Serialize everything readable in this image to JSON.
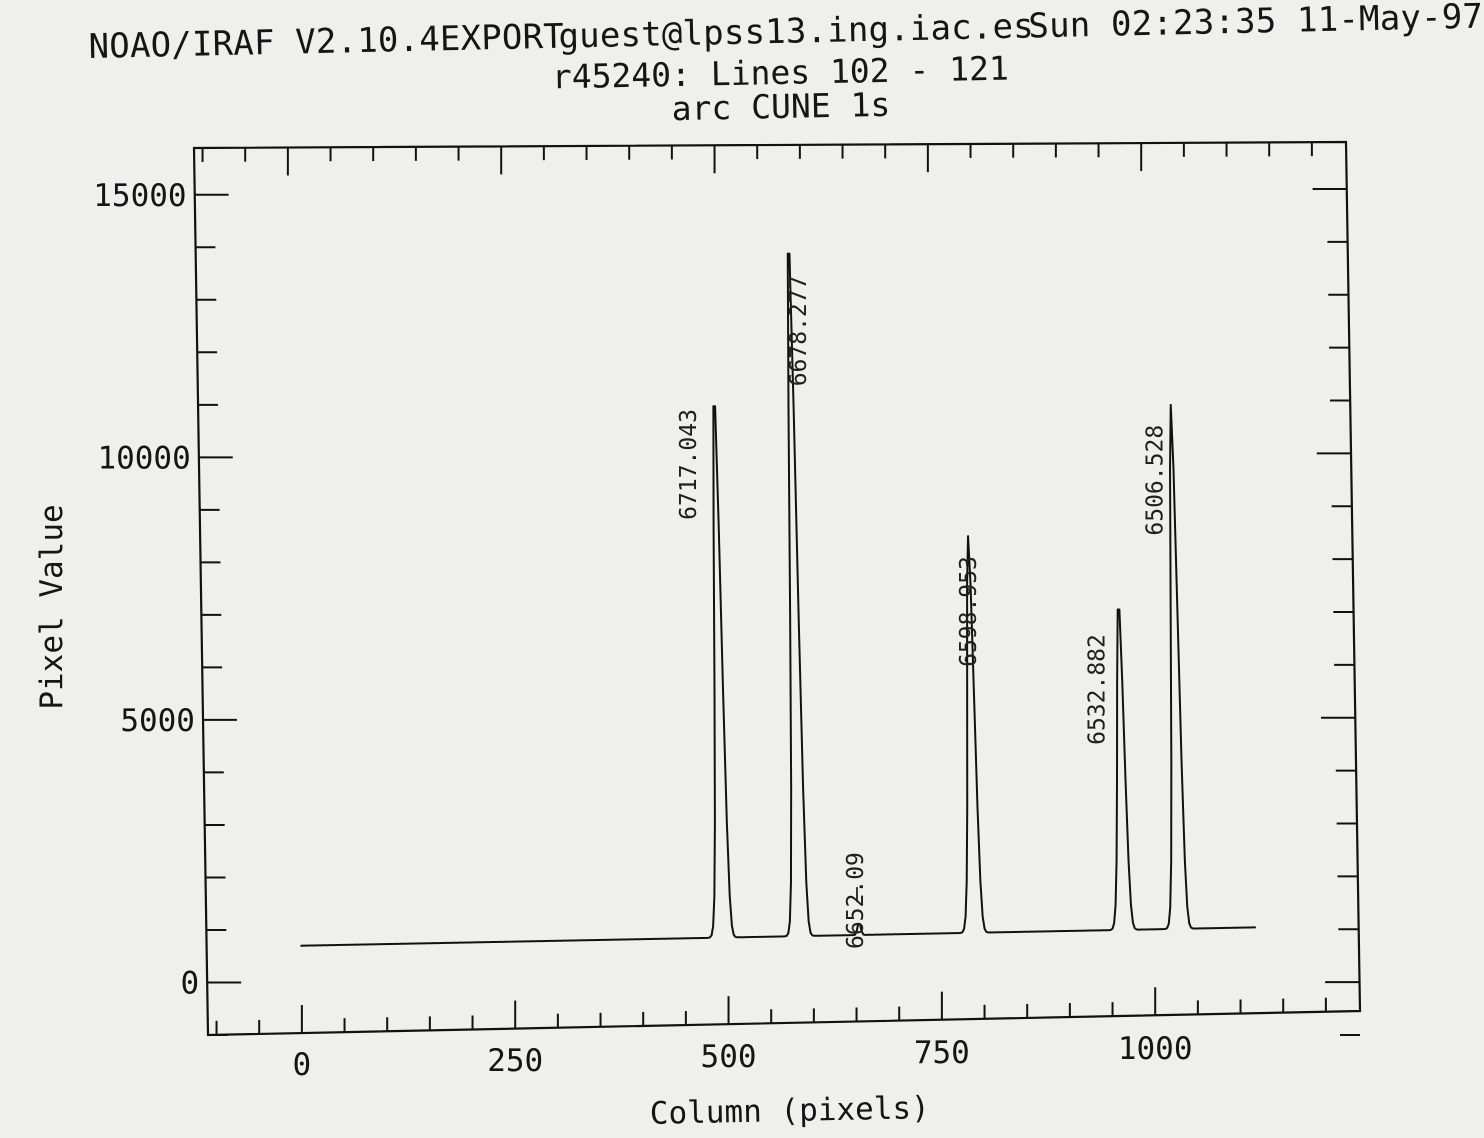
{
  "header": {
    "system": "NOAO/IRAF V2.10.4EXPORT",
    "user_host": "guest@lpss13.ing.iac.es",
    "timestamp": "Sun 02:23:35 11-May-97"
  },
  "chart_data": {
    "type": "line",
    "title": "r45240: Lines 102 - 121",
    "subtitle": "arc CUNE 1s",
    "xlabel": "Column (pixels)",
    "ylabel": "Pixel Value",
    "xlim": [
      -110,
      1240
    ],
    "ylim": [
      -1000,
      15700
    ],
    "x_ticks": [
      0,
      250,
      500,
      750,
      1000
    ],
    "y_ticks": [
      0,
      5000,
      10000,
      15000
    ],
    "grid": false,
    "baseline": {
      "start_x": 0,
      "end_x": 1120,
      "start_y": 700,
      "end_y": 1050
    },
    "peaks": [
      {
        "x": 495,
        "y": 11300,
        "label": "6717.043"
      },
      {
        "x": 585,
        "y": 14300,
        "label": "6678.277"
      },
      {
        "x": 655,
        "y": 1150,
        "label": "6652.09"
      },
      {
        "x": 790,
        "y": 8500,
        "label": "6598.953"
      },
      {
        "x": 965,
        "y": 7300,
        "label": "6532.882"
      },
      {
        "x": 1030,
        "y": 11000,
        "label": "6506.528"
      }
    ]
  }
}
